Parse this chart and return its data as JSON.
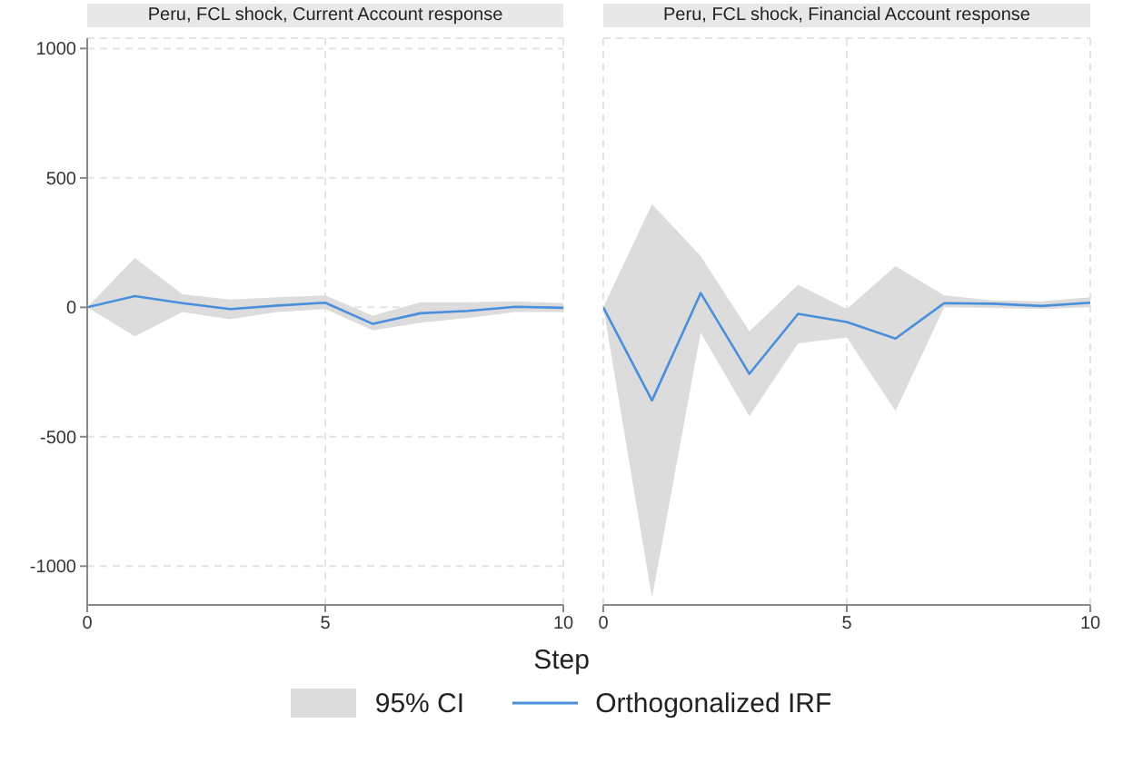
{
  "chart_data": [
    {
      "type": "line",
      "title": "Peru, FCL shock, Current Account response",
      "xlabel": "Step",
      "annotations": [
        "95% CI"
      ],
      "x": [
        0,
        1,
        2,
        3,
        4,
        5,
        6,
        7,
        8,
        9,
        10
      ],
      "xlim": [
        0,
        10
      ],
      "xticks": [
        0,
        5,
        10
      ],
      "ylim": [
        -1150,
        1040
      ],
      "yticks": [
        -1000,
        -500,
        0,
        500,
        1000
      ],
      "grid": true,
      "legend": "bottom",
      "series": [
        {
          "name": "Orthogonalized IRF",
          "color": "#4a8fdc",
          "values": [
            0,
            43,
            16,
            -7,
            7,
            18,
            -64,
            -23,
            -14,
            2,
            -2
          ],
          "lower": [
            0,
            -112,
            -18,
            -46,
            -18,
            -7,
            -89,
            -59,
            -41,
            -18,
            -18
          ],
          "upper": [
            0,
            191,
            50,
            30,
            39,
            46,
            -32,
            20,
            20,
            23,
            16
          ]
        }
      ]
    },
    {
      "type": "line",
      "title": "Peru, FCL shock, Financial Account response",
      "x": [
        0,
        1,
        2,
        3,
        4,
        5,
        6,
        7,
        8,
        9,
        10
      ],
      "xlim": [
        0,
        10
      ],
      "xticks": [
        0,
        5,
        10
      ],
      "ylim": [
        -1150,
        1040
      ],
      "yticks": [
        -1000,
        -500,
        0,
        500,
        1000
      ],
      "grid": true,
      "tick_labels": "x",
      "series": [
        {
          "color": "#4a8fdc",
          "values": [
            0,
            -360,
            55,
            -257,
            -25,
            -57,
            -121,
            16,
            14,
            5,
            18
          ],
          "lower": [
            0,
            -1123,
            -98,
            -421,
            -139,
            -116,
            -401,
            0,
            -2,
            -7,
            0
          ],
          "upper": [
            0,
            399,
            198,
            -93,
            87,
            -7,
            159,
            46,
            27,
            23,
            39
          ]
        }
      ]
    }
  ]
}
